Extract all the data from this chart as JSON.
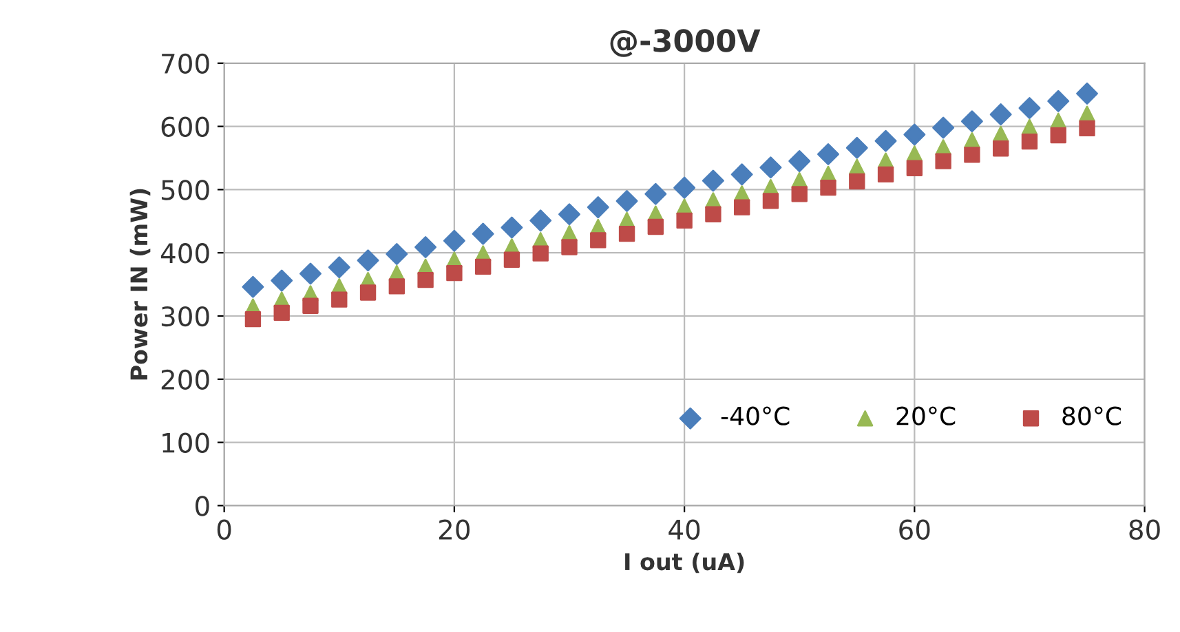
{
  "chart_data": {
    "type": "scatter",
    "title": "@-3000V",
    "xlabel": "I out (uA)",
    "ylabel": "Power IN (mW)",
    "x": [
      2.5,
      5,
      7.5,
      10,
      12.5,
      15,
      17.5,
      20,
      22.5,
      25,
      27.5,
      30,
      32.5,
      35,
      37.5,
      40,
      42.5,
      45,
      47.5,
      50,
      52.5,
      55,
      57.5,
      60,
      62.5,
      65,
      67.5,
      70,
      72.5,
      75
    ],
    "series": [
      {
        "name": "-40°C",
        "color": "#4a7ebb",
        "marker": "diamond",
        "values": [
          346,
          356,
          367,
          377,
          388,
          398,
          409,
          419,
          430,
          440,
          451,
          461,
          472,
          482,
          493,
          503,
          514,
          524,
          535,
          545,
          556,
          566,
          577,
          587,
          598,
          608,
          619,
          629,
          640,
          652
        ]
      },
      {
        "name": "20°C",
        "color": "#98b954",
        "marker": "triangle",
        "values": [
          315,
          326,
          336,
          347,
          357,
          368,
          378,
          389,
          399,
          410,
          420,
          431,
          441,
          452,
          462,
          473,
          483,
          494,
          504,
          515,
          525,
          536,
          546,
          557,
          567,
          578,
          588,
          599,
          609,
          620
        ]
      },
      {
        "name": "80°C",
        "color": "#be4b48",
        "marker": "square",
        "values": [
          295,
          305,
          316,
          326,
          337,
          347,
          357,
          368,
          378,
          389,
          399,
          409,
          420,
          430,
          441,
          451,
          461,
          472,
          482,
          493,
          503,
          513,
          524,
          534,
          545,
          555,
          565,
          576,
          586,
          597
        ]
      }
    ],
    "xlim": [
      0,
      80
    ],
    "xticks": [
      0,
      20,
      40,
      60,
      80
    ],
    "ylim": [
      0,
      700
    ],
    "yticks": [
      0,
      100,
      200,
      300,
      400,
      500,
      600,
      700
    ],
    "grid": true,
    "legend": "bottom right"
  }
}
